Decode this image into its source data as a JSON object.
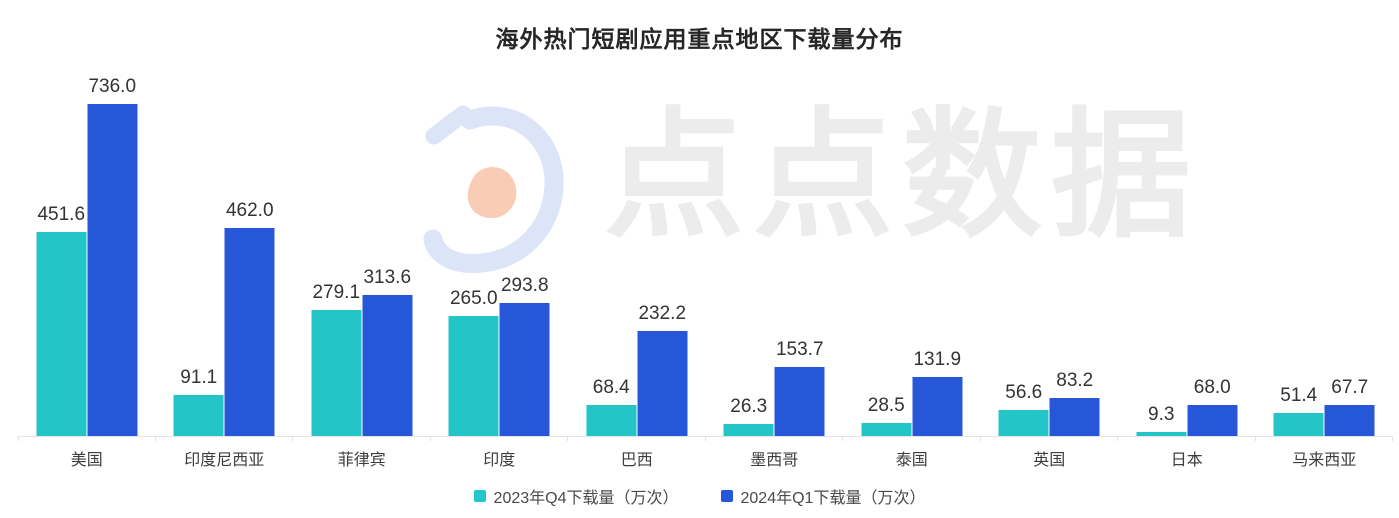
{
  "title": "海外热门短剧应用重点地区下载量分布",
  "watermark": {
    "text": "点点数据",
    "logo": "diandian-data-logo",
    "logo_blue": "#dbe5f7",
    "logo_accent": "#f9ccb5",
    "text_color": "#ececec"
  },
  "colors": {
    "series_2023_q4": "#23c5c6",
    "series_2024_q1": "#2657d8",
    "axis_line": "#e4e4e4",
    "value_label": "#333333",
    "category_label": "#3d3d3d",
    "title": "#262626"
  },
  "chart_data": {
    "type": "bar",
    "title": "海外热门短剧应用重点地区下载量分布",
    "categories": [
      "美国",
      "印度尼西亚",
      "菲律宾",
      "印度",
      "巴西",
      "墨西哥",
      "泰国",
      "英国",
      "日本",
      "马来西亚"
    ],
    "series": [
      {
        "name": "2023年Q4下载量（万次）",
        "color": "#23c5c6",
        "values": [
          451.6,
          91.1,
          279.1,
          265.0,
          68.4,
          26.3,
          28.5,
          56.6,
          9.3,
          51.4
        ]
      },
      {
        "name": "2024年Q1下载量（万次）",
        "color": "#2657d8",
        "values": [
          736.0,
          462.0,
          313.6,
          293.8,
          232.2,
          153.7,
          131.9,
          83.2,
          68.0,
          67.7
        ]
      }
    ],
    "ylim": [
      0,
      736
    ],
    "xlabel": "",
    "ylabel": "",
    "grid": false,
    "legend_position": "bottom",
    "value_labels": "above-bars, one decimal"
  }
}
